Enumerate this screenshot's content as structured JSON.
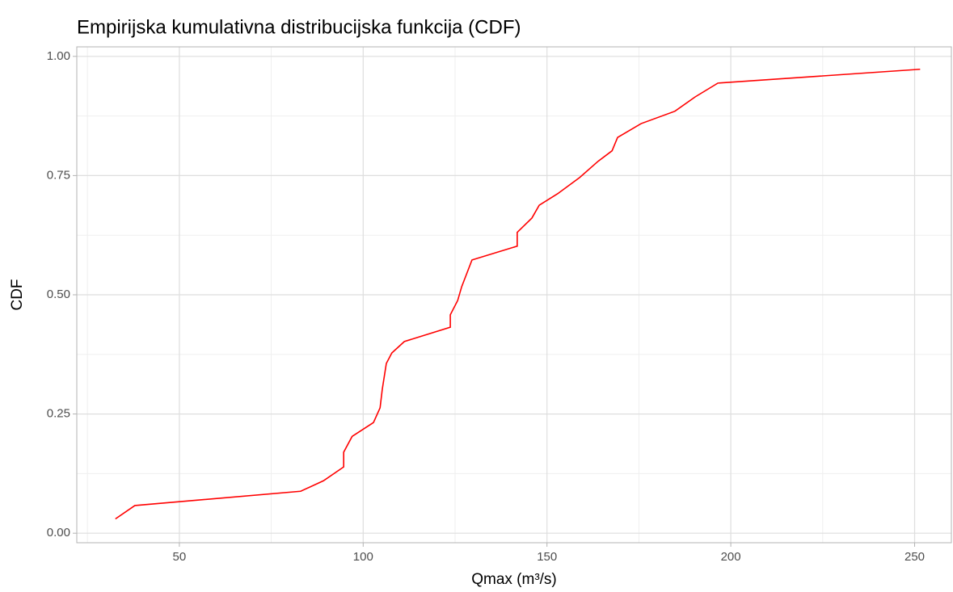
{
  "chart_data": {
    "type": "line",
    "title": "Empirijska kumulativna distribucijska funkcija (CDF)",
    "xlabel": "Qmax (m³/s)",
    "ylabel": "CDF",
    "x": [
      32.6,
      37.9,
      83,
      89.2,
      94.7,
      94.7,
      97,
      102.8,
      104.6,
      105.2,
      106.3,
      107.8,
      111.2,
      123.7,
      123.7,
      125.7,
      126.8,
      129.6,
      141.9,
      141.9,
      145.9,
      147.9,
      152.9,
      158.9,
      163.9,
      167.7,
      169.2,
      175.6,
      184.8,
      190.3,
      196.5,
      251.5
    ],
    "series": [
      {
        "name": "CDF",
        "color": "#ff0000",
        "values": [
          0.03,
          0.058,
          0.088,
          0.11,
          0.139,
          0.17,
          0.203,
          0.232,
          0.263,
          0.302,
          0.356,
          0.378,
          0.402,
          0.432,
          0.458,
          0.488,
          0.517,
          0.573,
          0.602,
          0.631,
          0.661,
          0.688,
          0.712,
          0.746,
          0.78,
          0.802,
          0.83,
          0.859,
          0.885,
          0.915,
          0.944,
          0.973
        ]
      }
    ],
    "xlim": [
      22.1,
      260
    ],
    "ylim": [
      -0.02,
      1.02
    ],
    "xticks": [
      50,
      100,
      150,
      200,
      250
    ],
    "yticks": [
      {
        "value": 0,
        "label": "0.00"
      },
      {
        "value": 0.25,
        "label": "0.25"
      },
      {
        "value": 0.5,
        "label": "0.50"
      },
      {
        "value": 0.75,
        "label": "0.75"
      },
      {
        "value": 1,
        "label": "1.00"
      }
    ],
    "xminor": [
      25,
      75,
      125,
      175,
      225
    ],
    "yminor": [
      0.125,
      0.375,
      0.625,
      0.875
    ],
    "grid": true
  }
}
